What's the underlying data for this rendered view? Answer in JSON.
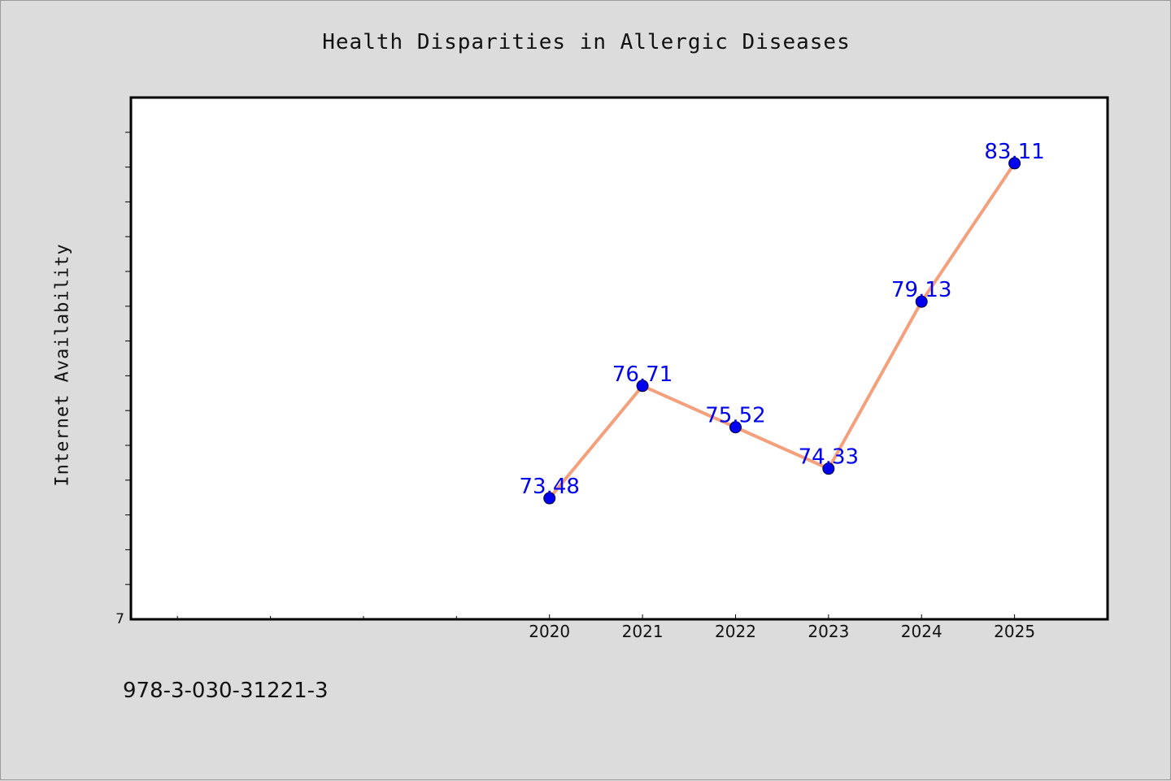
{
  "chart_data": {
    "type": "line",
    "title": "Health Disparities in Allergic Diseases",
    "ylabel": "Internet Availability",
    "xlabel": "",
    "x_range": [
      2015.5,
      2026
    ],
    "ylim": [
      70,
      85
    ],
    "y_tick_label": "7",
    "categories": [
      "2020",
      "2021",
      "2022",
      "2023",
      "2024",
      "2025"
    ],
    "x": [
      2020,
      2021,
      2022,
      2023,
      2024,
      2025
    ],
    "series": [
      {
        "values": [
          73.48,
          76.71,
          75.52,
          74.33,
          79.13,
          83.11
        ],
        "labels": [
          "73.48",
          "76.71",
          "75.52",
          "74.33",
          "79.13",
          "83.11"
        ],
        "line_color": "#f4a07c",
        "marker_color": "#0000ee",
        "label_color": "#0000ee"
      }
    ],
    "grid": false,
    "legend": "none",
    "background": "#dcdcdc",
    "plot_background": "#ffffff"
  },
  "footer": {
    "code": "978-3-030-31221-3"
  }
}
